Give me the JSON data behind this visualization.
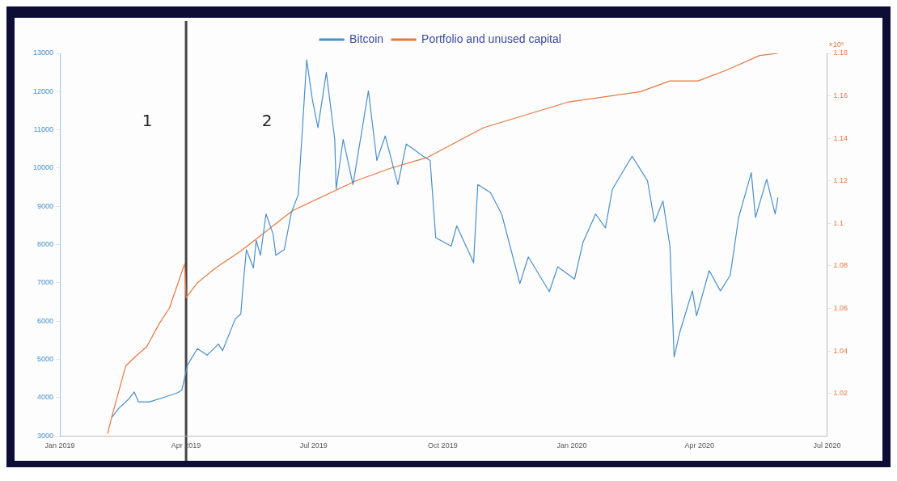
{
  "chart_data": {
    "type": "line",
    "xlim": [
      "2019-01-01",
      "2020-07-01"
    ],
    "xticks": [
      {
        "value": "2019-01-01",
        "label": "Jan 2019"
      },
      {
        "value": "2019-04-01",
        "label": "Apr 2019"
      },
      {
        "value": "2019-07-01",
        "label": "Jul 2019"
      },
      {
        "value": "2019-10-01",
        "label": "Oct 2019"
      },
      {
        "value": "2020-01-01",
        "label": "Jan 2020"
      },
      {
        "value": "2020-04-01",
        "label": "Apr 2020"
      },
      {
        "value": "2020-07-01",
        "label": "Jul 2020"
      }
    ],
    "ylim": [
      3000,
      13000
    ],
    "yticks": [
      3000,
      4000,
      5000,
      6000,
      7000,
      8000,
      9000,
      10000,
      11000,
      12000,
      13000
    ],
    "y2lim": [
      1.0,
      1.18
    ],
    "y2ticks": [
      1.02,
      1.04,
      1.06,
      1.08,
      1.1,
      1.12,
      1.14,
      1.16,
      1.18
    ],
    "grid": false,
    "legend": "top",
    "ref_lines": [
      {
        "axis": "x",
        "value": "2019-04-01",
        "color": "#444444"
      }
    ],
    "y2label": "×10⁵",
    "annotations": [
      "1",
      "2"
    ],
    "series": [
      {
        "name": "Bitcoin",
        "color": "#4a8fc9",
        "x": [
          "2019-02-07",
          "2019-02-12",
          "2019-02-19",
          "2019-02-23",
          "2019-02-26",
          "2019-03-06",
          "2019-03-18",
          "2019-03-26",
          "2019-03-29",
          "2019-04-02",
          "2019-04-09",
          "2019-04-16",
          "2019-04-24",
          "2019-04-27",
          "2019-05-06",
          "2019-05-10",
          "2019-05-12",
          "2019-05-14",
          "2019-05-19",
          "2019-05-21",
          "2019-05-24",
          "2019-05-28",
          "2019-06-02",
          "2019-06-04",
          "2019-06-10",
          "2019-06-15",
          "2019-06-20",
          "2019-06-26",
          "2019-06-30",
          "2019-07-04",
          "2019-07-10",
          "2019-07-16",
          "2019-07-17",
          "2019-07-22",
          "2019-07-29",
          "2019-08-09",
          "2019-08-15",
          "2019-08-21",
          "2019-08-30",
          "2019-09-05",
          "2019-09-17",
          "2019-09-22",
          "2019-09-26",
          "2019-10-07",
          "2019-10-11",
          "2019-10-23",
          "2019-10-26",
          "2019-11-04",
          "2019-11-12",
          "2019-11-25",
          "2019-12-01",
          "2019-12-16",
          "2019-12-22",
          "2020-01-03",
          "2020-01-09",
          "2020-01-18",
          "2020-01-25",
          "2020-01-30",
          "2020-02-13",
          "2020-02-24",
          "2020-02-29",
          "2020-03-06",
          "2020-03-11",
          "2020-03-14",
          "2020-03-18",
          "2020-03-27",
          "2020-03-30",
          "2020-04-08",
          "2020-04-16",
          "2020-04-23",
          "2020-04-29",
          "2020-05-08",
          "2020-05-11",
          "2020-05-19",
          "2020-05-25",
          "2020-05-27"
        ],
        "values": [
          3480,
          3720,
          3960,
          4150,
          3890,
          3890,
          4030,
          4130,
          4200,
          4850,
          5280,
          5110,
          5400,
          5230,
          6050,
          6190,
          7080,
          7870,
          7390,
          8110,
          7720,
          8800,
          8280,
          7720,
          7870,
          8830,
          9310,
          12830,
          11800,
          11060,
          12500,
          10750,
          9450,
          10750,
          9570,
          12020,
          10200,
          10840,
          9570,
          10630,
          10310,
          10200,
          8180,
          7960,
          8490,
          7530,
          9570,
          9360,
          8800,
          6980,
          7680,
          6770,
          7420,
          7100,
          8060,
          8800,
          8440,
          9450,
          10310,
          9670,
          8590,
          9140,
          7960,
          5060,
          5710,
          6790,
          6140,
          7320,
          6790,
          7200,
          8710,
          9880,
          8710,
          9710,
          8800,
          9230
        ]
      },
      {
        "name": "Portfolio and unused capital",
        "color": "#e8773f",
        "axis": "y2",
        "x": [
          "2019-02-04",
          "2019-02-07",
          "2019-02-17",
          "2019-02-25",
          "2019-03-04",
          "2019-03-13",
          "2019-03-20",
          "2019-03-31",
          "2019-04-01",
          "2019-04-09",
          "2019-04-22",
          "2019-05-10",
          "2019-06-16",
          "2019-07-31",
          "2019-08-25",
          "2019-09-20",
          "2019-10-30",
          "2019-12-29",
          "2020-02-19",
          "2020-03-11",
          "2020-03-31",
          "2020-04-20",
          "2020-05-14",
          "2020-05-27"
        ],
        "values": [
          1.001,
          1.009,
          1.033,
          1.038,
          1.042,
          1.053,
          1.06,
          1.081,
          1.065,
          1.072,
          1.079,
          1.087,
          1.106,
          1.12,
          1.126,
          1.131,
          1.145,
          1.157,
          1.162,
          1.167,
          1.167,
          1.172,
          1.179,
          1.18
        ]
      }
    ]
  }
}
